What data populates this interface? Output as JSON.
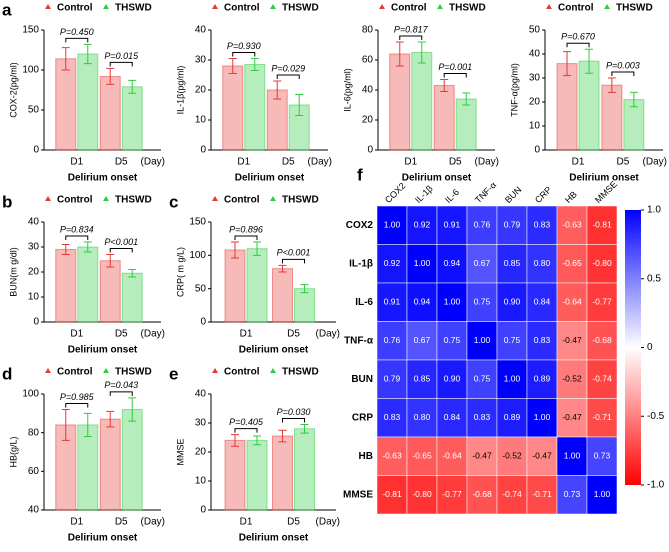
{
  "chart_data": [
    {
      "type": "bar",
      "panel": "a",
      "ylabel": "COX-2(pg/ml)",
      "xlabel": "Delirium onset",
      "x_unit": "(Day)",
      "categories": [
        "D1",
        "D5"
      ],
      "p_values": [
        "P=0.450",
        "P=0.015"
      ],
      "series": [
        {
          "name": "Control",
          "color": "#e53935",
          "values": [
            114,
            92
          ],
          "errors": [
            14,
            10
          ]
        },
        {
          "name": "THSWD",
          "color": "#2ecc40",
          "values": [
            120,
            79
          ],
          "errors": [
            12,
            8
          ]
        }
      ],
      "ylim": [
        0,
        150
      ],
      "yticks": [
        0,
        50,
        100,
        150
      ]
    },
    {
      "type": "bar",
      "ylabel": "IL-1β(pg/ml)",
      "xlabel": "Delirium onset",
      "x_unit": "(Day)",
      "categories": [
        "D1",
        "D5"
      ],
      "p_values": [
        "P=0.930",
        "P=0.029"
      ],
      "series": [
        {
          "name": "Control",
          "color": "#e53935",
          "values": [
            28,
            20
          ],
          "errors": [
            2.5,
            3
          ]
        },
        {
          "name": "THSWD",
          "color": "#2ecc40",
          "values": [
            28.5,
            15
          ],
          "errors": [
            2,
            3.5
          ]
        }
      ],
      "ylim": [
        0,
        40
      ],
      "yticks": [
        0,
        10,
        20,
        30,
        40
      ]
    },
    {
      "type": "bar",
      "ylabel": "IL-6(pg/ml)",
      "xlabel": "Delirium onset",
      "x_unit": "(Day)",
      "categories": [
        "D1",
        "D5"
      ],
      "p_values": [
        "P=0.817",
        "P=0.001"
      ],
      "series": [
        {
          "name": "Control",
          "color": "#e53935",
          "values": [
            64,
            43
          ],
          "errors": [
            8,
            4
          ]
        },
        {
          "name": "THSWD",
          "color": "#2ecc40",
          "values": [
            65,
            34
          ],
          "errors": [
            7,
            4
          ]
        }
      ],
      "ylim": [
        0,
        80
      ],
      "yticks": [
        0,
        20,
        40,
        60,
        80
      ]
    },
    {
      "type": "bar",
      "ylabel": "TNF-α(pg/ml)",
      "xlabel": "Delirium onset",
      "x_unit": "(Day)",
      "categories": [
        "D1",
        "D5"
      ],
      "p_values": [
        "P=0.670",
        "P=0.003"
      ],
      "series": [
        {
          "name": "Control",
          "color": "#e53935",
          "values": [
            36,
            27
          ],
          "errors": [
            5,
            3
          ]
        },
        {
          "name": "THSWD",
          "color": "#2ecc40",
          "values": [
            37,
            21
          ],
          "errors": [
            5,
            3
          ]
        }
      ],
      "ylim": [
        0,
        50
      ],
      "yticks": [
        0,
        10,
        20,
        30,
        40,
        50
      ]
    },
    {
      "type": "bar",
      "panel": "b",
      "ylabel": "BUN(m g/dl)",
      "xlabel": "Delirium onset",
      "x_unit": "(Day)",
      "categories": [
        "D1",
        "D5"
      ],
      "p_values": [
        "P=0.834",
        "P<0.001"
      ],
      "series": [
        {
          "name": "Control",
          "color": "#e53935",
          "values": [
            29,
            24.5
          ],
          "errors": [
            2,
            2.5
          ]
        },
        {
          "name": "THSWD",
          "color": "#2ecc40",
          "values": [
            30,
            19.5
          ],
          "errors": [
            2,
            1.5
          ]
        }
      ],
      "ylim": [
        0,
        40
      ],
      "yticks": [
        0,
        10,
        20,
        30,
        40
      ]
    },
    {
      "type": "bar",
      "panel": "c",
      "ylabel": "CRP( m g/L)",
      "xlabel": "Delirium onset",
      "x_unit": "(Day)",
      "categories": [
        "D1",
        "D5"
      ],
      "p_values": [
        "P=0.896",
        "P<0.001"
      ],
      "series": [
        {
          "name": "Control",
          "color": "#e53935",
          "values": [
            108,
            80
          ],
          "errors": [
            12,
            5
          ]
        },
        {
          "name": "THSWD",
          "color": "#2ecc40",
          "values": [
            110,
            50
          ],
          "errors": [
            10,
            6
          ]
        }
      ],
      "ylim": [
        0,
        150
      ],
      "yticks": [
        0,
        50,
        100,
        150
      ]
    },
    {
      "type": "bar",
      "panel": "d",
      "ylabel": "HB(g/L)",
      "xlabel": "Delirium onset",
      "x_unit": "(Day)",
      "categories": [
        "D1",
        "D5"
      ],
      "p_values": [
        "P=0.985",
        "P=0.043"
      ],
      "series": [
        {
          "name": "Control",
          "color": "#e53935",
          "values": [
            84,
            87
          ],
          "errors": [
            8,
            4
          ]
        },
        {
          "name": "THSWD",
          "color": "#2ecc40",
          "values": [
            84,
            92
          ],
          "errors": [
            6,
            6
          ]
        }
      ],
      "ylim": [
        40,
        100
      ],
      "yticks": [
        40,
        60,
        80,
        100
      ]
    },
    {
      "type": "bar",
      "panel": "e",
      "ylabel": "MMSE",
      "xlabel": "Delirium onset",
      "x_unit": "(Day)",
      "categories": [
        "D1",
        "D5"
      ],
      "p_values": [
        "P=0.405",
        "P=0.030"
      ],
      "series": [
        {
          "name": "Control",
          "color": "#e53935",
          "values": [
            24,
            25.5
          ],
          "errors": [
            2,
            2
          ]
        },
        {
          "name": "THSWD",
          "color": "#2ecc40",
          "values": [
            24,
            28
          ],
          "errors": [
            1.5,
            1.5
          ]
        }
      ],
      "ylim": [
        0,
        40
      ],
      "yticks": [
        0,
        10,
        20,
        30,
        40
      ]
    },
    {
      "type": "heatmap",
      "panel": "f",
      "categories": [
        "COX2",
        "IL-1β",
        "IL-6",
        "TNF-α",
        "BUN",
        "CRP",
        "HB",
        "MMSE"
      ],
      "values": [
        [
          1,
          0.92,
          0.91,
          0.76,
          0.79,
          0.83,
          -0.63,
          -0.81
        ],
        [
          0.92,
          1,
          0.94,
          0.67,
          0.85,
          0.8,
          -0.65,
          -0.8
        ],
        [
          0.91,
          0.94,
          1,
          0.75,
          0.9,
          0.84,
          -0.64,
          -0.77
        ],
        [
          0.76,
          0.67,
          0.75,
          1,
          0.75,
          0.83,
          -0.47,
          -0.68
        ],
        [
          0.79,
          0.85,
          0.9,
          0.75,
          1,
          0.89,
          -0.52,
          -0.74
        ],
        [
          0.83,
          0.8,
          0.84,
          0.83,
          0.89,
          1,
          -0.47,
          -0.71
        ],
        [
          -0.63,
          -0.65,
          -0.64,
          -0.47,
          -0.52,
          -0.47,
          1,
          0.73
        ],
        [
          -0.81,
          -0.8,
          -0.77,
          -0.68,
          -0.74,
          -0.71,
          0.73,
          1
        ]
      ],
      "value_labels": [
        [
          "1.00",
          "0.92",
          "0.91",
          "0.76",
          "0.79",
          "0.83",
          "-0.63",
          "-0.81"
        ],
        [
          "0.92",
          "1.00",
          "0.94",
          "0.67",
          "0.85",
          "0.80",
          "-0.65",
          "-0.80"
        ],
        [
          "0.91",
          "0.94",
          "1.00",
          "0.75",
          "0.90",
          "0.84",
          "-0.64",
          "-0.77"
        ],
        [
          "0.76",
          "0.67",
          "0.75",
          "1.00",
          "0.75",
          "0.83",
          "-0.47",
          "-0.68"
        ],
        [
          "0.79",
          "0.85",
          "0.90",
          "0.75",
          "1.00",
          "0.89",
          "-0.52",
          "-0.74"
        ],
        [
          "0.83",
          "0.80",
          "0.84",
          "0.83",
          "0.89",
          "1.00",
          "-0.47",
          "-0.71"
        ],
        [
          "-0.63",
          "-0.65",
          "-0.64",
          "-0.47",
          "-0.52",
          "-0.47",
          "1.00",
          "0.73"
        ],
        [
          "-0.81",
          "-0.80",
          "-0.77",
          "-0.68",
          "-0.74",
          "-0.71",
          "0.73",
          "1.00"
        ]
      ],
      "zlim": [
        -1,
        1
      ],
      "colorbar_ticks": [
        {
          "value": 1,
          "label": "1.0"
        },
        0.5,
        0,
        -0.5,
        {
          "value": -1,
          "label": "-1.0"
        }
      ]
    }
  ]
}
